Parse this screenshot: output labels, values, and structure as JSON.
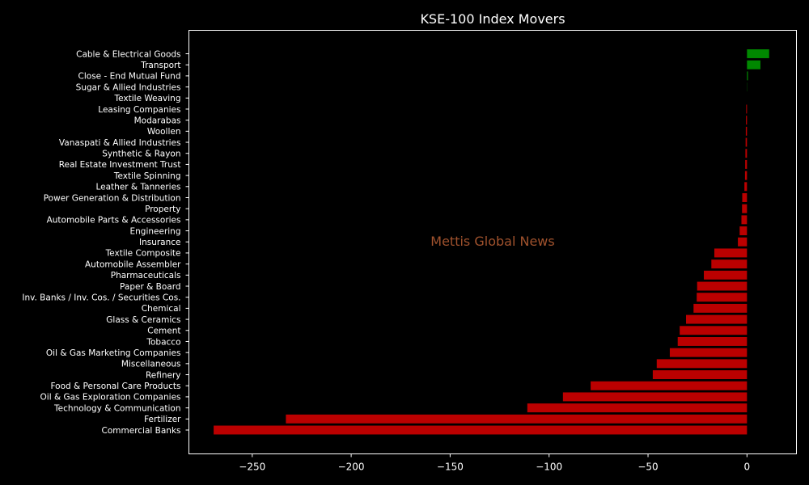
{
  "chart_data": {
    "type": "bar",
    "orientation": "horizontal",
    "title": "KSE-100 Index Movers",
    "xlabel": "",
    "ylabel": "",
    "xlim": [
      -282,
      25
    ],
    "xticks": [
      -250,
      -200,
      -150,
      -100,
      -50,
      0
    ],
    "xtick_labels": [
      "−250",
      "−200",
      "−150",
      "−100",
      "−50",
      "0"
    ],
    "grid": false,
    "watermark": "Mettis Global News",
    "colors": {
      "positive": "#008800",
      "negative": "#bb0000",
      "background": "#000000",
      "text": "#ffffff",
      "watermark": "#a0522d"
    },
    "categories": [
      "Cable & Electrical Goods",
      "Transport",
      "Close - End Mutual Fund",
      "Sugar & Allied Industries",
      "Textile Weaving",
      "Leasing Companies",
      "Modarabas",
      "Woollen",
      "Vanaspati & Allied Industries",
      "Synthetic & Rayon",
      "Real Estate Investment Trust",
      "Textile Spinning",
      "Leather & Tanneries",
      "Power Generation & Distribution",
      "Property",
      "Automobile Parts & Accessories",
      "Engineering",
      "Insurance",
      "Textile Composite",
      "Automobile Assembler",
      "Pharmaceuticals",
      "Paper & Board",
      "Inv. Banks / Inv. Cos. / Securities Cos.",
      "Chemical",
      "Glass & Ceramics",
      "Cement",
      "Tobacco",
      "Oil & Gas Marketing Companies",
      "Miscellaneous",
      "Refinery",
      "Food & Personal Care Products",
      "Oil & Gas Exploration Companies",
      "Technology & Communication",
      "Fertilizer",
      "Commercial Banks"
    ],
    "values": [
      11.2,
      6.8,
      0.5,
      0.1,
      0.0,
      -0.4,
      -0.5,
      -0.6,
      -0.7,
      -0.8,
      -0.9,
      -1.0,
      -1.3,
      -2.4,
      -2.5,
      -2.8,
      -3.7,
      -4.6,
      -16.5,
      -18.0,
      -21.8,
      -25.2,
      -25.4,
      -27.0,
      -30.8,
      -34.0,
      -35.0,
      -39.0,
      -45.6,
      -47.6,
      -79.0,
      -93.0,
      -111.0,
      -233.0,
      -269.5
    ]
  }
}
